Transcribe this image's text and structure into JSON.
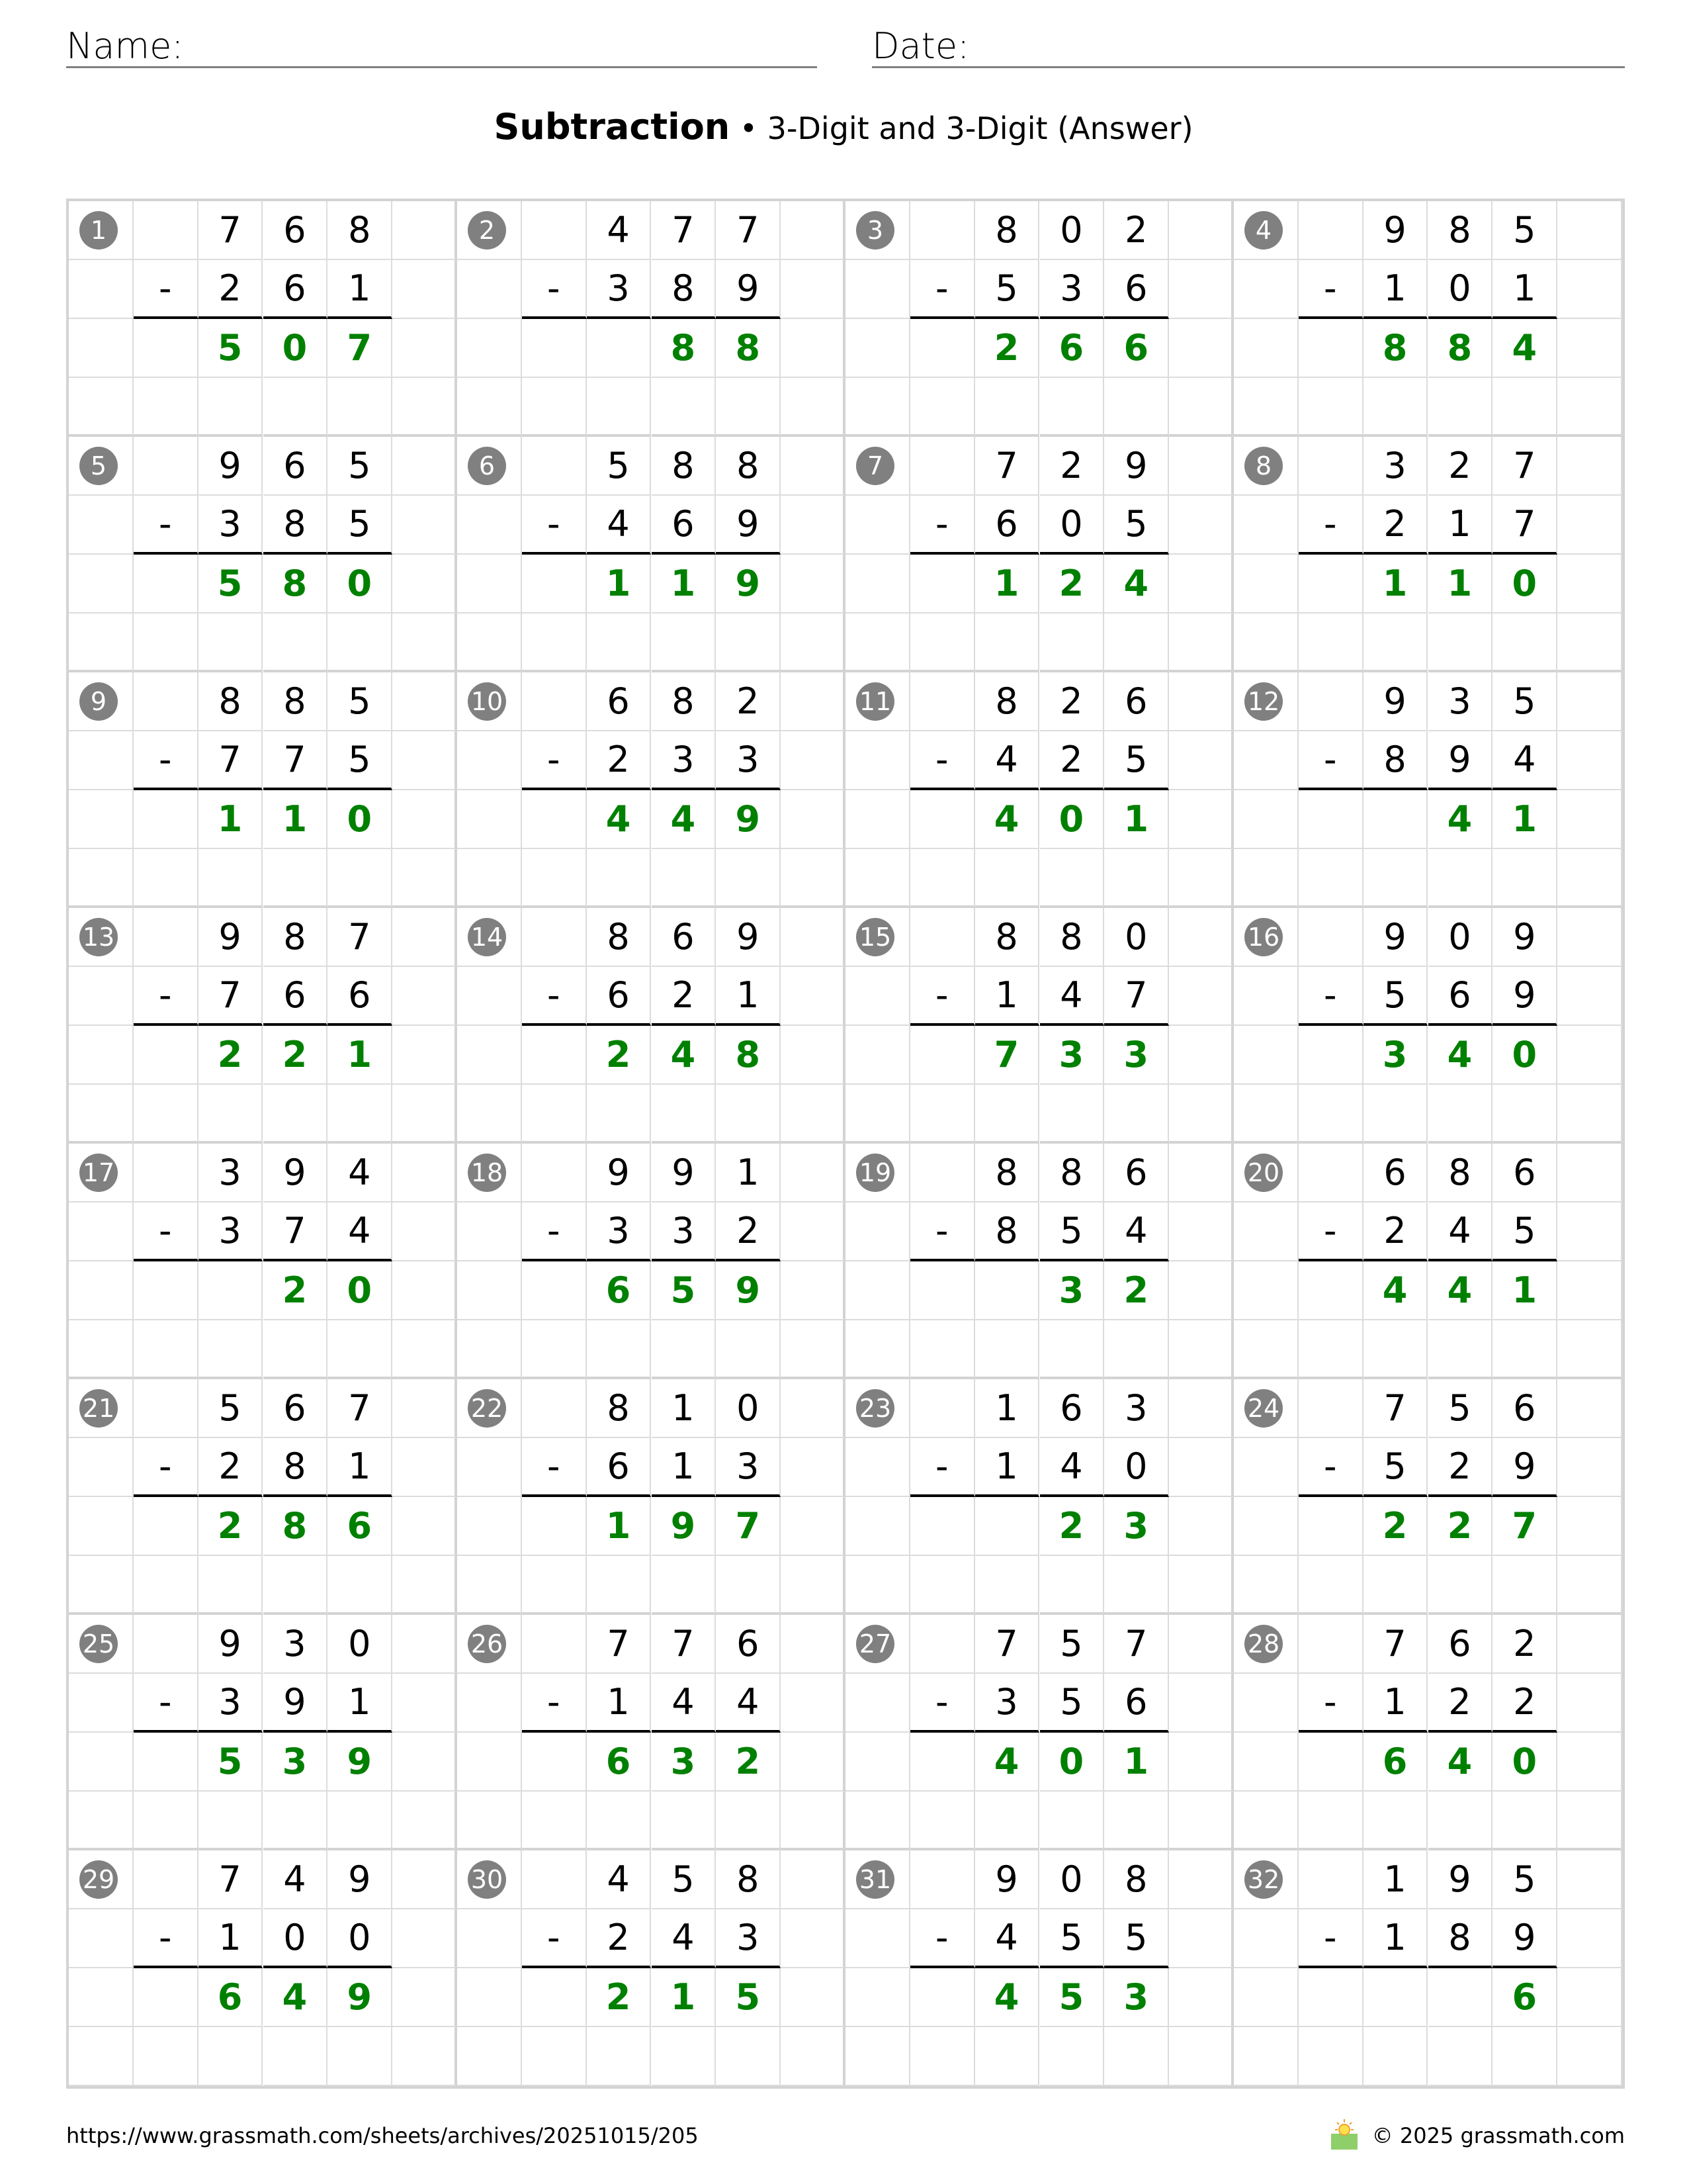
{
  "header": {
    "name_label": "Name:",
    "date_label": "Date:"
  },
  "title": {
    "main": "Subtraction",
    "separator": " • ",
    "subtitle": "3-Digit and 3-Digit (Answer)"
  },
  "colors": {
    "answer": "#008000",
    "badge": "#808080",
    "grid": "#d3d3d3"
  },
  "problems": [
    {
      "n": "1",
      "top": "768",
      "bottom": "261",
      "answer": "507"
    },
    {
      "n": "2",
      "top": "477",
      "bottom": "389",
      "answer": "88"
    },
    {
      "n": "3",
      "top": "802",
      "bottom": "536",
      "answer": "266"
    },
    {
      "n": "4",
      "top": "985",
      "bottom": "101",
      "answer": "884"
    },
    {
      "n": "5",
      "top": "965",
      "bottom": "385",
      "answer": "580"
    },
    {
      "n": "6",
      "top": "588",
      "bottom": "469",
      "answer": "119"
    },
    {
      "n": "7",
      "top": "729",
      "bottom": "605",
      "answer": "124"
    },
    {
      "n": "8",
      "top": "327",
      "bottom": "217",
      "answer": "110"
    },
    {
      "n": "9",
      "top": "885",
      "bottom": "775",
      "answer": "110"
    },
    {
      "n": "10",
      "top": "682",
      "bottom": "233",
      "answer": "449"
    },
    {
      "n": "11",
      "top": "826",
      "bottom": "425",
      "answer": "401"
    },
    {
      "n": "12",
      "top": "935",
      "bottom": "894",
      "answer": "41"
    },
    {
      "n": "13",
      "top": "987",
      "bottom": "766",
      "answer": "221"
    },
    {
      "n": "14",
      "top": "869",
      "bottom": "621",
      "answer": "248"
    },
    {
      "n": "15",
      "top": "880",
      "bottom": "147",
      "answer": "733"
    },
    {
      "n": "16",
      "top": "909",
      "bottom": "569",
      "answer": "340"
    },
    {
      "n": "17",
      "top": "394",
      "bottom": "374",
      "answer": "20"
    },
    {
      "n": "18",
      "top": "991",
      "bottom": "332",
      "answer": "659"
    },
    {
      "n": "19",
      "top": "886",
      "bottom": "854",
      "answer": "32"
    },
    {
      "n": "20",
      "top": "686",
      "bottom": "245",
      "answer": "441"
    },
    {
      "n": "21",
      "top": "567",
      "bottom": "281",
      "answer": "286"
    },
    {
      "n": "22",
      "top": "810",
      "bottom": "613",
      "answer": "197"
    },
    {
      "n": "23",
      "top": "163",
      "bottom": "140",
      "answer": "23"
    },
    {
      "n": "24",
      "top": "756",
      "bottom": "529",
      "answer": "227"
    },
    {
      "n": "25",
      "top": "930",
      "bottom": "391",
      "answer": "539"
    },
    {
      "n": "26",
      "top": "776",
      "bottom": "144",
      "answer": "632"
    },
    {
      "n": "27",
      "top": "757",
      "bottom": "356",
      "answer": "401"
    },
    {
      "n": "28",
      "top": "762",
      "bottom": "122",
      "answer": "640"
    },
    {
      "n": "29",
      "top": "749",
      "bottom": "100",
      "answer": "649"
    },
    {
      "n": "30",
      "top": "458",
      "bottom": "243",
      "answer": "215"
    },
    {
      "n": "31",
      "top": "908",
      "bottom": "455",
      "answer": "453"
    },
    {
      "n": "32",
      "top": "195",
      "bottom": "189",
      "answer": "6"
    }
  ],
  "operator": "-",
  "footer": {
    "url": "https://www.grassmath.com/sheets/archives/20251015/205",
    "copyright": "© 2025 grassmath.com",
    "logo_icon": "sun-over-grass-icon"
  }
}
